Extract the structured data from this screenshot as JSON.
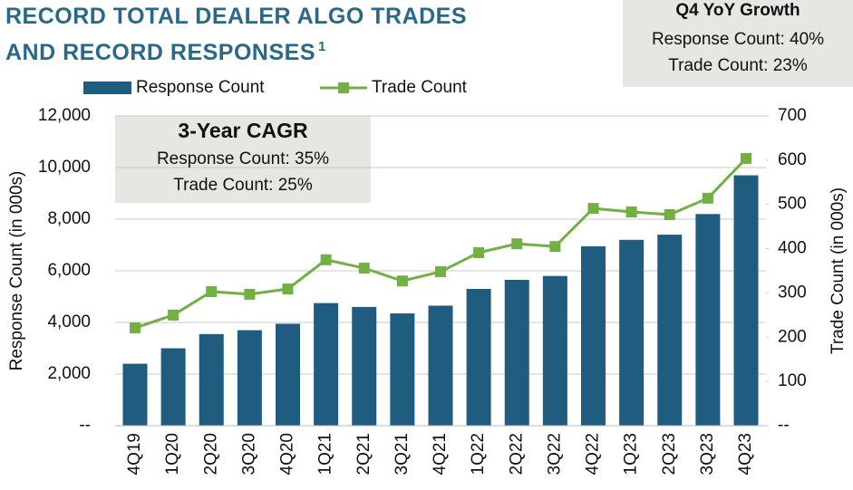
{
  "chart_data": {
    "type": "bar_line",
    "title": "RECORD TOTAL DEALER ALGO TRADES AND RECORD RESPONSES",
    "title_footnote": "1",
    "categories": [
      "4Q19",
      "1Q20",
      "2Q20",
      "3Q20",
      "4Q20",
      "1Q21",
      "2Q21",
      "3Q21",
      "4Q21",
      "1Q22",
      "2Q22",
      "3Q22",
      "4Q22",
      "1Q23",
      "2Q23",
      "3Q23",
      "4Q23"
    ],
    "series": [
      {
        "name": "Response Count",
        "type": "bar",
        "color": "#1f5c80",
        "values": [
          2400,
          3000,
          3550,
          3700,
          3950,
          4750,
          4600,
          4350,
          4650,
          5300,
          5650,
          5800,
          6950,
          7200,
          7400,
          8200,
          9700
        ]
      },
      {
        "name": "Trade Count",
        "type": "line",
        "axis": "y2",
        "color": "#72b043",
        "values": [
          221,
          250,
          303,
          297,
          309,
          375,
          356,
          327,
          348,
          391,
          411,
          405,
          491,
          483,
          477,
          514,
          604
        ]
      }
    ],
    "ylabel": "Response Count (in 000s)",
    "y2label": "Trade Count (in 000s)",
    "ylim": [
      0,
      12000
    ],
    "yticks": [
      {
        "value": 0,
        "label": "--"
      },
      {
        "value": 2000,
        "label": "2,000"
      },
      {
        "value": 4000,
        "label": "4,000"
      },
      {
        "value": 6000,
        "label": "6,000"
      },
      {
        "value": 8000,
        "label": "8,000"
      },
      {
        "value": 10000,
        "label": "10,000"
      },
      {
        "value": 12000,
        "label": "12,000"
      }
    ],
    "y2lim": [
      0,
      700
    ],
    "y2ticks": [
      {
        "value": 0,
        "label": "--"
      },
      100,
      200,
      300,
      400,
      500,
      600,
      700
    ],
    "grid": true,
    "annotations": [
      {
        "title": "3-Year CAGR",
        "lines": [
          "Response Count: 35%",
          "Trade Count: 25%"
        ]
      },
      {
        "title": "Q4 YoY Growth",
        "lines": [
          "Response Count: 40%",
          "Trade Count: 23%"
        ]
      }
    ]
  }
}
